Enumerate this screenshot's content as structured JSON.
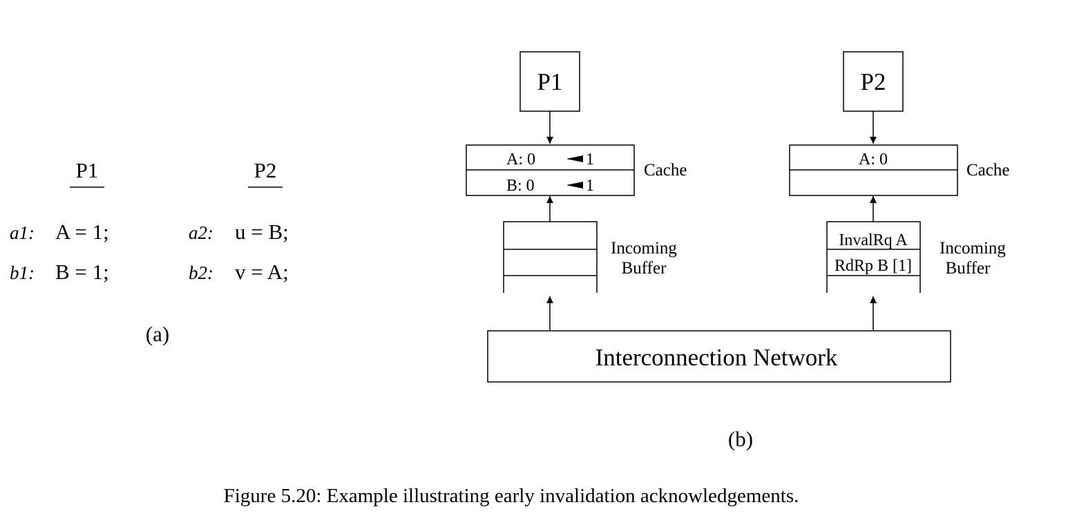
{
  "part_a": {
    "p1": {
      "header": "P1",
      "rows": [
        {
          "label": "a1:",
          "code": "A = 1;"
        },
        {
          "label": "b1:",
          "code": "B = 1;"
        }
      ]
    },
    "p2": {
      "header": "P2",
      "rows": [
        {
          "label": "a2:",
          "code": "u = B;"
        },
        {
          "label": "b2:",
          "code": "v  = A;"
        }
      ]
    },
    "sublabel": "(a)"
  },
  "part_b": {
    "left": {
      "processor": "P1",
      "cache_rows": [
        {
          "from": "A: 0",
          "to": "1"
        },
        {
          "from": "B: 0",
          "to": "1"
        }
      ],
      "cache_label": "Cache",
      "buffer_entries": [
        "",
        "",
        ""
      ],
      "buffer_label": [
        "Incoming",
        "Buffer"
      ]
    },
    "right": {
      "processor": "P2",
      "cache_rows": [
        "A: 0",
        ""
      ],
      "cache_label": "Cache",
      "buffer_entries": [
        "InvalRq A",
        "RdRp B [1]"
      ],
      "buffer_label": [
        "Incoming",
        "Buffer"
      ]
    },
    "network": "Interconnection Network",
    "sublabel": "(b)"
  },
  "caption": "Figure 5.20:  Example illustrating early invalidation acknowledgements."
}
